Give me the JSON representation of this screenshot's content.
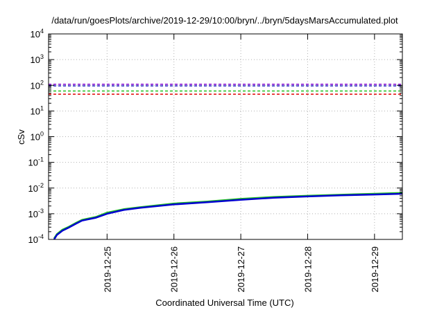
{
  "chart_data": {
    "type": "line",
    "title": "/data/run/goesPlots/archive/2019-12-29/10:00/bryn/../bryn/5daysMarsAccumulated.plot",
    "xlabel": "Coordinated Universal Time (UTC)",
    "ylabel": "cSv",
    "yscale": "log",
    "ylim": [
      0.0001,
      10000
    ],
    "xlim": [
      "2019-12-24T03:00",
      "2019-12-29T10:00"
    ],
    "x_ticks": [
      "2019-12-25",
      "2019-12-26",
      "2019-12-27",
      "2019-12-28",
      "2019-12-29"
    ],
    "y_ticks": [
      {
        "base": "10",
        "exp": "-4"
      },
      {
        "base": "10",
        "exp": "-3"
      },
      {
        "base": "10",
        "exp": "-2"
      },
      {
        "base": "10",
        "exp": "-1"
      },
      {
        "base": "10",
        "exp": "0"
      },
      {
        "base": "10",
        "exp": "1"
      },
      {
        "base": "10",
        "exp": "2"
      },
      {
        "base": "10",
        "exp": "3"
      },
      {
        "base": "10",
        "exp": "4"
      }
    ],
    "grid": true,
    "reference_lines": [
      {
        "value": 110,
        "color": "#8000d0",
        "style": "dashed"
      },
      {
        "value": 95,
        "color": "#2020c0",
        "style": "dashed"
      },
      {
        "value": 60,
        "color": "#20c020",
        "style": "dashed"
      },
      {
        "value": 45,
        "color": "#e00000",
        "style": "dashed"
      }
    ],
    "series": [
      {
        "color": "#20c020",
        "x": [
          "2019-12-24T05:00",
          "2019-12-24T06:00",
          "2019-12-24T08:00",
          "2019-12-24T10:00",
          "2019-12-24T13:00",
          "2019-12-24T15:00",
          "2019-12-24T20:00",
          "2019-12-25T00:00",
          "2019-12-25T06:00",
          "2019-12-25T12:00",
          "2019-12-26T00:00",
          "2019-12-26T12:00",
          "2019-12-27T00:00",
          "2019-12-27T12:00",
          "2019-12-28T00:00",
          "2019-12-28T12:00",
          "2019-12-29T00:00",
          "2019-12-29T10:00"
        ],
        "y": [
          0.00011,
          0.00016,
          0.00024,
          0.0003,
          0.00045,
          0.00058,
          0.00075,
          0.0011,
          0.0015,
          0.0018,
          0.0025,
          0.003,
          0.0038,
          0.0045,
          0.005,
          0.0055,
          0.006,
          0.0065
        ]
      },
      {
        "color": "#0000d0",
        "x": [
          "2019-12-24T05:00",
          "2019-12-24T06:00",
          "2019-12-24T08:00",
          "2019-12-24T10:00",
          "2019-12-24T13:00",
          "2019-12-24T15:00",
          "2019-12-24T20:00",
          "2019-12-25T00:00",
          "2019-12-25T06:00",
          "2019-12-25T12:00",
          "2019-12-26T00:00",
          "2019-12-26T12:00",
          "2019-12-27T00:00",
          "2019-12-27T12:00",
          "2019-12-28T00:00",
          "2019-12-28T12:00",
          "2019-12-29T00:00",
          "2019-12-29T10:00"
        ],
        "y": [
          0.0001,
          0.00015,
          0.00022,
          0.00028,
          0.00042,
          0.00054,
          0.0007,
          0.001,
          0.0014,
          0.0017,
          0.0023,
          0.0028,
          0.0035,
          0.0042,
          0.0047,
          0.0052,
          0.0056,
          0.006
        ]
      }
    ]
  }
}
